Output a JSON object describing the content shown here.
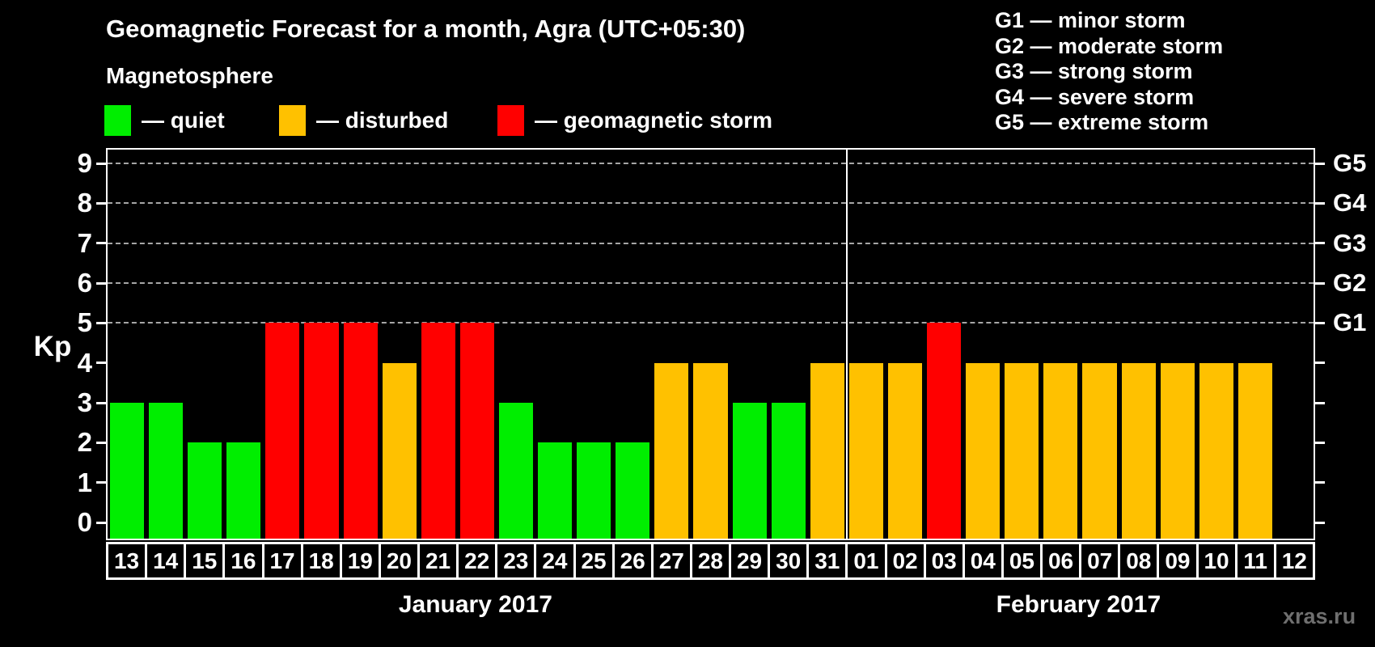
{
  "title": "Geomagnetic Forecast for a month, Agra (UTC+05:30)",
  "subtitle": "Magnetosphere",
  "status_legend": [
    {
      "name": "quiet",
      "label": "— quiet",
      "color": "#00ee00"
    },
    {
      "name": "disturbed",
      "label": "— disturbed",
      "color": "#ffc100"
    },
    {
      "name": "storm",
      "label": "— geomagnetic storm",
      "color": "#ff0000"
    }
  ],
  "g_scale_legend": [
    "G1 — minor storm",
    "G2 — moderate storm",
    "G3 — strong storm",
    "G4 — severe storm",
    "G5 — extreme storm"
  ],
  "watermark": "xras.ru",
  "chart_data": {
    "type": "bar",
    "ylabel": "Kp",
    "ylim": [
      0,
      9
    ],
    "yticks": [
      0,
      1,
      2,
      3,
      4,
      5,
      6,
      7,
      8,
      9
    ],
    "gridlines_at_kp": [
      5,
      6,
      7,
      8,
      9
    ],
    "right_axis_labels": [
      {
        "kp": 5,
        "label": "G1"
      },
      {
        "kp": 6,
        "label": "G2"
      },
      {
        "kp": 7,
        "label": "G3"
      },
      {
        "kp": 8,
        "label": "G4"
      },
      {
        "kp": 9,
        "label": "G5"
      }
    ],
    "months": [
      {
        "label": "January 2017",
        "start_index": 0,
        "num_days": 19
      },
      {
        "label": "February 2017",
        "start_index": 19,
        "num_days": 12
      }
    ],
    "categories": [
      "13",
      "14",
      "15",
      "16",
      "17",
      "18",
      "19",
      "20",
      "21",
      "22",
      "23",
      "24",
      "25",
      "26",
      "27",
      "28",
      "29",
      "30",
      "31",
      "01",
      "02",
      "03",
      "04",
      "05",
      "06",
      "07",
      "08",
      "09",
      "10",
      "11",
      "12"
    ],
    "values": [
      3,
      3,
      2,
      2,
      5,
      5,
      5,
      4,
      5,
      5,
      3,
      2,
      2,
      2,
      4,
      4,
      3,
      3,
      4,
      4,
      4,
      5,
      4,
      4,
      4,
      4,
      4,
      4,
      4,
      4,
      0
    ],
    "statuses": [
      "quiet",
      "quiet",
      "quiet",
      "quiet",
      "storm",
      "storm",
      "storm",
      "disturbed",
      "storm",
      "storm",
      "quiet",
      "quiet",
      "quiet",
      "quiet",
      "disturbed",
      "disturbed",
      "quiet",
      "quiet",
      "disturbed",
      "disturbed",
      "disturbed",
      "storm",
      "disturbed",
      "disturbed",
      "disturbed",
      "disturbed",
      "disturbed",
      "disturbed",
      "disturbed",
      "disturbed",
      "none"
    ],
    "colors": {
      "quiet": "#00ee00",
      "disturbed": "#ffc100",
      "storm": "#ff0000"
    },
    "grid": true,
    "legend_position": "top"
  }
}
